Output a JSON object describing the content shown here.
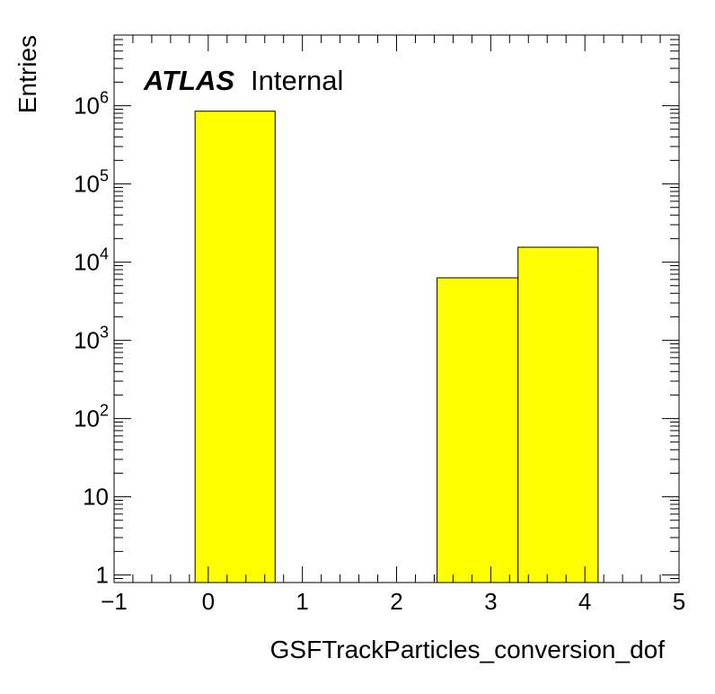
{
  "chart_data": {
    "type": "bar",
    "xlabel": "GSFTrackParticles_conversion_dof",
    "ylabel": "Entries",
    "xlim": [
      -1,
      5
    ],
    "ylim": [
      0.8,
      8000000
    ],
    "yscale": "log",
    "x_ticks": [
      {
        "value": -1,
        "label": "−1"
      },
      {
        "value": 0,
        "label": "0"
      },
      {
        "value": 1,
        "label": "1"
      },
      {
        "value": 2,
        "label": "2"
      },
      {
        "value": 3,
        "label": "3"
      },
      {
        "value": 4,
        "label": "4"
      },
      {
        "value": 5,
        "label": "5"
      }
    ],
    "y_ticks": [
      {
        "value": 1,
        "base": "1",
        "exp": ""
      },
      {
        "value": 10,
        "base": "10",
        "exp": ""
      },
      {
        "value": 100,
        "base": "10",
        "exp": "2"
      },
      {
        "value": 1000,
        "base": "10",
        "exp": "3"
      },
      {
        "value": 10000,
        "base": "10",
        "exp": "4"
      },
      {
        "value": 100000,
        "base": "10",
        "exp": "5"
      },
      {
        "value": 1000000,
        "base": "10",
        "exp": "6"
      }
    ],
    "bins": [
      {
        "x_low": -0.14,
        "x_high": 0.71,
        "value": 850000
      },
      {
        "x_low": 2.43,
        "x_high": 3.29,
        "value": 6300
      },
      {
        "x_low": 3.29,
        "x_high": 4.14,
        "value": 15500
      }
    ],
    "fill_color": "#ffff00",
    "grid": false,
    "annotation": {
      "bold": "ATLAS",
      "regular": "Internal"
    }
  }
}
